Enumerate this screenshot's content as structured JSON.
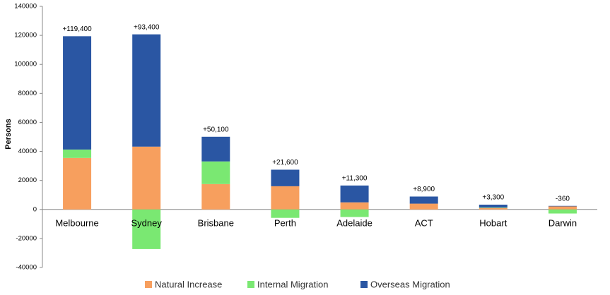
{
  "chart_data": {
    "type": "stacked_bar",
    "y_axis_label": "Persons",
    "categories": [
      "Melbourne",
      "Sydney",
      "Brisbane",
      "Perth",
      "Adelaide",
      "ACT",
      "Hobart",
      "Darwin"
    ],
    "series": [
      {
        "name": "Natural Increase",
        "color": "#f79f5e",
        "values": [
          35500,
          43300,
          17500,
          16000,
          4900,
          4000,
          1000,
          2100
        ]
      },
      {
        "name": "Internal Migration",
        "color": "#7ae872",
        "values": [
          5800,
          -27300,
          15600,
          -5800,
          -5200,
          0,
          300,
          -2800
        ]
      },
      {
        "name": "Overseas Migration",
        "color": "#2a56a3",
        "values": [
          78100,
          77400,
          17000,
          11400,
          11600,
          4900,
          2000,
          340
        ]
      }
    ],
    "net_change": [
      119400,
      93400,
      50100,
      21600,
      11300,
      8900,
      3300,
      -360
    ],
    "net_change_labels": [
      "+119,400",
      "+93,400",
      "+50,100",
      "+21,600",
      "+11,300",
      "+8,900",
      "+3,300",
      "-360"
    ],
    "ylim": [
      -40000,
      140000
    ],
    "yticks": [
      -40000,
      -20000,
      0,
      20000,
      40000,
      60000,
      80000,
      100000,
      120000,
      140000
    ],
    "legend": "bottom"
  }
}
